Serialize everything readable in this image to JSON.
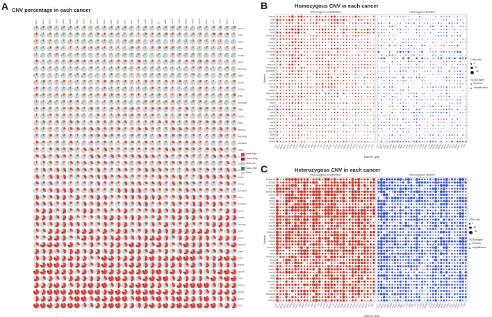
{
  "figure": {
    "background": "#ffffff"
  },
  "chart_data": [
    {
      "id": "A",
      "label": "A",
      "type": "pie-grid",
      "title": "CNV percentage in each cancer",
      "cancer_types": [
        "ACC",
        "BLCA",
        "BRCA",
        "CESC",
        "CHOL",
        "COAD",
        "DLBC",
        "ESCA",
        "GBM",
        "HNSC",
        "KICH",
        "KIRC",
        "KIRP",
        "LGG",
        "LIHC",
        "LUAD",
        "LUSC",
        "MESO",
        "OV",
        "PAAD",
        "PCPG",
        "PRAD",
        "READ",
        "SARC",
        "SKCM",
        "STAD",
        "TGCT",
        "THCA",
        "UCEC",
        "UCS"
      ],
      "genes": [
        "ADCY9",
        "GNB4",
        "GNG4",
        "ITPR2",
        "KCNB1",
        "GNAS",
        "PRKAR2A",
        "GNB3",
        "GNGT1",
        "KCNQ2",
        "GNB1",
        "PRKAR1B",
        "GNB2",
        "GNG11",
        "ITPR1",
        "PRKACA",
        "PRKAR2B",
        "PRKAR1A",
        "ITPR3",
        "GNG13",
        "GLP1R",
        "ADCY5",
        "GNAI1",
        "GNG12",
        "RAPGEF3",
        "GNG7",
        "RAPGEF4",
        "GNAI2",
        "KCNB2",
        "PRKACB",
        "GNG5",
        "GNAI3",
        "PRKACG",
        "GNB5",
        "GNG2",
        "RAP1A",
        "ADCY6",
        "GNG3",
        "GNG10",
        "AKAP5",
        "GNGT2",
        "GCG"
      ],
      "series": {
        "hete_amp_pct": [
          10,
          12,
          9,
          11,
          8,
          14,
          10,
          9,
          12,
          11,
          13,
          10,
          15,
          12,
          14,
          18,
          16,
          15,
          20,
          22,
          18,
          25,
          28,
          24,
          30,
          35,
          32,
          38,
          42,
          40,
          45,
          48,
          52,
          50,
          55,
          58,
          60,
          62,
          65,
          68,
          70,
          72
        ],
        "hete_del_pct": [
          25,
          20,
          22,
          18,
          24,
          16,
          20,
          22,
          15,
          18,
          16,
          20,
          14,
          15,
          12,
          12,
          14,
          10,
          12,
          10,
          14,
          10,
          8,
          10,
          8,
          7,
          8,
          6,
          6,
          7,
          5,
          6,
          5,
          6,
          4,
          5,
          4,
          4,
          3,
          4,
          3,
          3
        ]
      },
      "seed": 11,
      "legend": {
        "items": [
          {
            "label": "Hete Amp",
            "color": "#e0423c"
          },
          {
            "label": "Homo Amp",
            "color": "#8b1a1a"
          },
          {
            "label": "Hete Del",
            "color": "#a9d9c5"
          },
          {
            "label": "Homo Del",
            "color": "#2e8b57"
          },
          {
            "label": "None",
            "color": "#d3d3d3"
          }
        ]
      }
    },
    {
      "id": "B",
      "label": "B",
      "type": "dot-matrix",
      "title": "Homozygous CNV in each cancer",
      "facets": [
        "Homozygous amplification",
        "Homozygous deletion"
      ],
      "xlabel": "Cancer type",
      "ylabel": "Symbol",
      "cancer_types": [
        "ACC",
        "BLCA",
        "BRCA",
        "CESC",
        "CHOL",
        "COAD",
        "DLBC",
        "ESCA",
        "GBM",
        "HNSC",
        "KICH",
        "KIRC",
        "KIRP",
        "LAML",
        "LGG",
        "LIHC",
        "LUAD",
        "LUSC",
        "MESO",
        "OV",
        "PAAD",
        "PCPG",
        "PRAD",
        "READ",
        "SARC",
        "SKCM",
        "STAD",
        "TGCT",
        "THCA",
        "THYM",
        "UCEC",
        "UCS",
        "UVM"
      ],
      "genes": [
        "ADCY9",
        "GNB4",
        "GNG4",
        "ITPR2",
        "KCNB1",
        "GNAS",
        "PRKAR2A",
        "GNB3",
        "GNGT1",
        "KCNQ2",
        "GNB1",
        "PRKAR1B",
        "GNB2",
        "GNG11",
        "ITPR1",
        "PRKACA",
        "PRKAR2B",
        "PRKAR1A",
        "ITPR3",
        "GNG13",
        "GLP1R",
        "ADCY5",
        "GNAI1",
        "GNG12",
        "RAPGEF3",
        "GNG7",
        "RAPGEF4",
        "GNAI2",
        "KCNB2",
        "PRKACB",
        "GNG5",
        "GNAI3",
        "PRKACG",
        "GNB5",
        "GNG2",
        "RAP1A",
        "ADCY6",
        "GNG3",
        "GNG10",
        "AKAP5"
      ],
      "series": {
        "amplification": {
          "color": "#c23525",
          "seed": 22,
          "row_means": [
            14,
            15,
            10,
            9,
            12,
            13,
            8,
            9,
            10,
            7,
            11,
            8,
            9,
            10,
            8,
            12,
            9,
            7,
            10,
            8,
            7,
            9,
            8,
            6,
            7,
            8,
            6,
            7,
            5,
            8,
            6,
            5,
            6,
            5,
            6,
            4,
            6,
            5,
            4,
            5
          ]
        },
        "deletion": {
          "color": "#3a55c9",
          "seed": 33,
          "row_means": [
            4,
            3,
            5,
            6,
            3,
            4,
            5,
            3,
            4,
            6,
            3,
            10,
            4,
            12,
            5,
            3,
            4,
            6,
            3,
            5,
            4,
            3,
            6,
            4,
            3,
            5,
            4,
            3,
            5,
            4,
            6,
            3,
            4,
            5,
            3,
            4,
            3,
            5,
            4,
            6
          ]
        }
      },
      "value_max": 45,
      "legend": {
        "size_title": "CNV (%)",
        "sizes": [
          1,
          20,
          45
        ],
        "type_title": "SCNA type",
        "types": [
          {
            "label": "Deletion",
            "color": "#3a55c9"
          },
          {
            "label": "Amplification",
            "color": "#c23525"
          }
        ]
      }
    },
    {
      "id": "C",
      "label": "C",
      "type": "dot-matrix",
      "title": "Heterozygous CNV in each cancer",
      "facets": [
        "Heterozygous amplification",
        "Heterozygous deletion"
      ],
      "xlabel": "Cancer type",
      "ylabel": "Symbol",
      "cancer_types": [
        "ACC",
        "BLCA",
        "BRCA",
        "CESC",
        "CHOL",
        "COAD",
        "DLBC",
        "ESCA",
        "GBM",
        "HNSC",
        "KICH",
        "KIRC",
        "KIRP",
        "LAML",
        "LGG",
        "LIHC",
        "LUAD",
        "LUSC",
        "MESO",
        "OV",
        "PAAD",
        "PCPG",
        "PRAD",
        "READ",
        "SARC",
        "SKCM",
        "STAD",
        "TGCT",
        "THCA",
        "THYM",
        "UCEC",
        "UCS",
        "UVM"
      ],
      "genes": [
        "PRKAR1B",
        "KCNB2",
        "PRKAR2A",
        "ADCY6",
        "PRKAR2B",
        "GNGT1",
        "GNB2",
        "GNG11",
        "ITPR1",
        "GNG2",
        "GNAS",
        "GNB1",
        "KCNB1",
        "GNG7",
        "AKAP5",
        "ADCY5",
        "GNG10",
        "PRKACG",
        "RAP1A",
        "GNB4",
        "GNG13",
        "GNAI3",
        "PRKACB",
        "GNB5",
        "GNG5",
        "PRKAR1A",
        "GNG3",
        "ITPR2",
        "GNGT2",
        "GNG12",
        "GLP1R",
        "GNB3",
        "ITPR3",
        "PRKACA",
        "GNAI1",
        "GNAI2",
        "ADCY9",
        "RAPGEF3",
        "GNG4",
        "KCNQ2"
      ],
      "series": {
        "amplification": {
          "color": "#c23525",
          "seed": 44,
          "row_means": [
            55,
            50,
            60,
            48,
            58,
            52,
            62,
            56,
            50,
            54,
            65,
            60,
            58,
            52,
            48,
            55,
            50,
            45,
            52,
            58,
            48,
            50,
            46,
            52,
            44,
            48,
            42,
            46,
            40,
            50,
            44,
            42,
            46,
            40,
            44,
            38,
            42,
            40,
            36,
            34
          ]
        },
        "deletion": {
          "color": "#3a55c9",
          "seed": 55,
          "row_means": [
            50,
            55,
            45,
            48,
            52,
            42,
            50,
            46,
            44,
            40,
            38,
            45,
            40,
            42,
            36,
            44,
            38,
            40,
            35,
            42,
            46,
            38,
            42,
            36,
            40,
            34,
            38,
            36,
            40,
            34,
            36,
            38,
            34,
            36,
            32,
            36,
            30,
            34,
            32,
            30
          ]
        }
      },
      "value_max": 80,
      "legend": {
        "size_title": "CNV (%)",
        "sizes": [
          1,
          40,
          80
        ],
        "type_title": "SCNA type",
        "types": [
          {
            "label": "Deletion",
            "color": "#3a55c9"
          },
          {
            "label": "Amplification",
            "color": "#c23525"
          }
        ]
      }
    }
  ]
}
